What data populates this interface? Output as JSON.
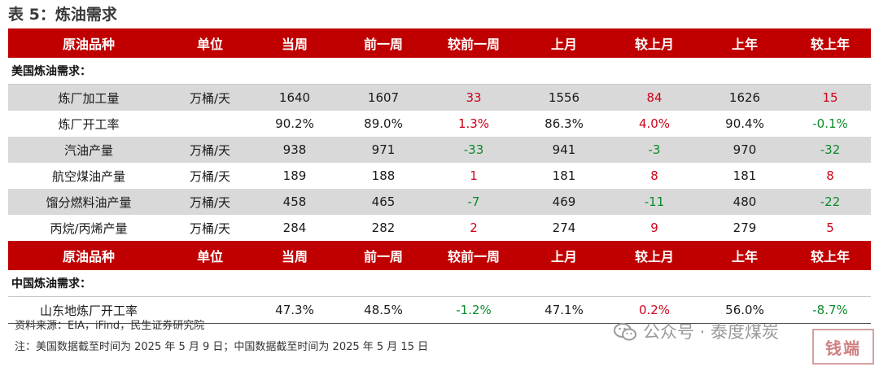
{
  "title": "表 5：炼油需求",
  "columns": [
    "原油品种",
    "单位",
    "当周",
    "前一周",
    "较前一周",
    "上月",
    "较上月",
    "上年",
    "较上年"
  ],
  "us_section": {
    "label": "美国炼油需求：",
    "rows": [
      {
        "name": "炼厂加工量",
        "unit": "万桶/天",
        "week": "1640",
        "prev_week": "1607",
        "wow": "33",
        "month": "1556",
        "mom": "84",
        "year": "1626",
        "yoy": "15"
      },
      {
        "name": "炼厂开工率",
        "unit": "",
        "week": "90.2%",
        "prev_week": "89.0%",
        "wow": "1.3%",
        "month": "86.3%",
        "mom": "4.0%",
        "year": "90.4%",
        "yoy": "-0.1%"
      },
      {
        "name": "汽油产量",
        "unit": "万桶/天",
        "week": "938",
        "prev_week": "971",
        "wow": "-33",
        "month": "941",
        "mom": "-3",
        "year": "970",
        "yoy": "-32"
      },
      {
        "name": "航空煤油产量",
        "unit": "万桶/天",
        "week": "189",
        "prev_week": "188",
        "wow": "1",
        "month": "181",
        "mom": "8",
        "year": "181",
        "yoy": "8"
      },
      {
        "name": "馏分燃料油产量",
        "unit": "万桶/天",
        "week": "458",
        "prev_week": "465",
        "wow": "-7",
        "month": "469",
        "mom": "-11",
        "year": "480",
        "yoy": "-22"
      },
      {
        "name": "丙烷/丙烯产量",
        "unit": "万桶/天",
        "week": "284",
        "prev_week": "282",
        "wow": "2",
        "month": "274",
        "mom": "9",
        "year": "279",
        "yoy": "5"
      }
    ]
  },
  "cn_section": {
    "label": "中国炼油需求：",
    "rows": [
      {
        "name": "山东地炼厂开工率",
        "unit": "",
        "week": "47.3%",
        "prev_week": "48.5%",
        "wow": "-1.2%",
        "month": "47.1%",
        "mom": "0.2%",
        "year": "56.0%",
        "yoy": "-8.7%"
      }
    ]
  },
  "source_note": "资料来源：EIA，iFind，民生证券研究院",
  "footnote": "注：美国数据截至时间为 2025 年 5 月 9 日；中国数据截至时间为 2025 年 5 月 15 日",
  "watermark": {
    "text": "公众号 · 泰度煤炭",
    "icon": "wechat-icon"
  },
  "stamp_text": "钱端",
  "colors": {
    "header_bg": "#c00000",
    "shaded_row": "#d9d9d9",
    "positive": "#d0021b",
    "negative": "#0a8a2a"
  }
}
